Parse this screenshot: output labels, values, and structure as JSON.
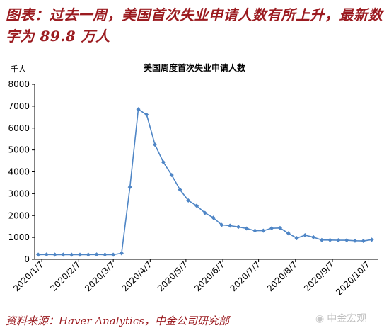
{
  "header": {
    "title": "图表：过去一周，美国首次失业申请人数有所上升，最新数字为 89.8 万人"
  },
  "footer": {
    "source": "资料来源：Haver Analytics，中金公司研究部",
    "watermark": "中金宏观"
  },
  "colors": {
    "series": "#4f86c6",
    "brand": "#9b1b20"
  },
  "icons": {
    "watermark": "wechat-icon"
  },
  "chart_data": {
    "type": "line",
    "title": "美国周度首次失业申请人数",
    "unit": "千人",
    "ylim": [
      0,
      8000
    ],
    "yticks": [
      0,
      1000,
      2000,
      3000,
      4000,
      5000,
      6000,
      7000,
      8000
    ],
    "x_ticks": [
      "2020/1/7",
      "2020/2/7",
      "2020/3/7",
      "2020/4/7",
      "2020/5/7",
      "2020/6/7",
      "2020/7/7",
      "2020/8/7",
      "2020/9/7",
      "2020/10/7"
    ],
    "grid": false,
    "series": [
      {
        "x": [
          "2020/1/4",
          "2020/1/11",
          "2020/1/18",
          "2020/1/25",
          "2020/2/1",
          "2020/2/8",
          "2020/2/15",
          "2020/2/22",
          "2020/2/29",
          "2020/3/7",
          "2020/3/14",
          "2020/3/21",
          "2020/3/28",
          "2020/4/4",
          "2020/4/11",
          "2020/4/18",
          "2020/4/25",
          "2020/5/2",
          "2020/5/9",
          "2020/5/16",
          "2020/5/23",
          "2020/5/30",
          "2020/6/6",
          "2020/6/13",
          "2020/6/20",
          "2020/6/27",
          "2020/7/4",
          "2020/7/11",
          "2020/7/18",
          "2020/7/25",
          "2020/8/1",
          "2020/8/8",
          "2020/8/15",
          "2020/8/22",
          "2020/8/29",
          "2020/9/5",
          "2020/9/12",
          "2020/9/19",
          "2020/9/26",
          "2020/10/3",
          "2020/10/10"
        ],
        "values": [
          215,
          220,
          215,
          215,
          210,
          210,
          215,
          220,
          215,
          210,
          280,
          3300,
          6860,
          6610,
          5240,
          4440,
          3850,
          3180,
          2690,
          2450,
          2120,
          1900,
          1570,
          1540,
          1480,
          1410,
          1310,
          1310,
          1420,
          1430,
          1190,
          970,
          1100,
          1010,
          880,
          880,
          870,
          870,
          850,
          840,
          898
        ]
      }
    ]
  }
}
